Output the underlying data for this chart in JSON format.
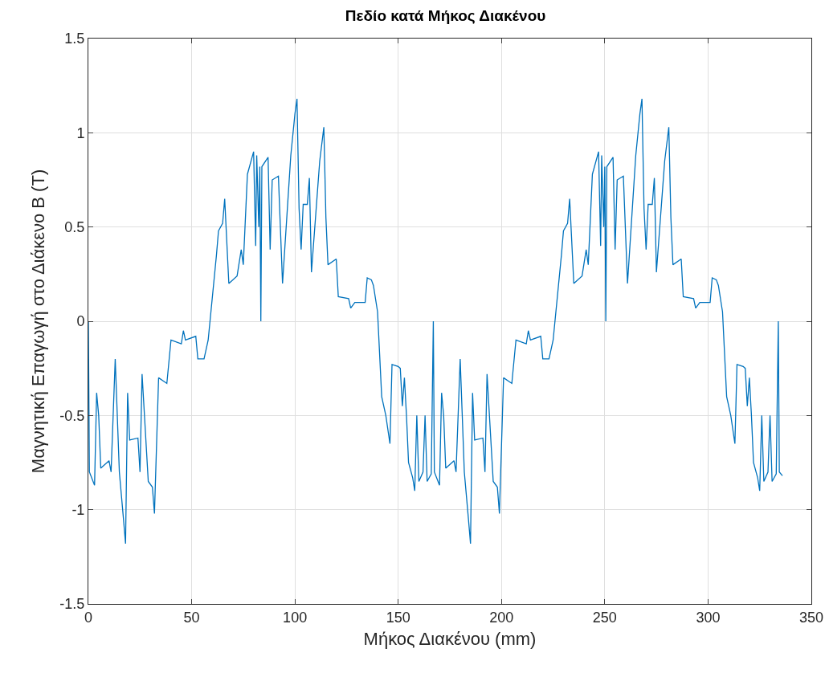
{
  "chart_data": {
    "type": "line",
    "title": "Πεδίο κατά Μήκος Διακένου",
    "xlabel": "Μήκος Διακένου (mm)",
    "ylabel": "Μαγνητική Επαγωγή στο Διάκενο B (T)",
    "x": [
      0,
      0.5,
      3,
      4,
      5,
      6,
      10,
      11,
      13,
      15,
      17,
      18,
      19,
      20,
      24,
      25,
      26,
      29,
      31,
      32,
      34,
      38,
      40,
      45,
      46,
      47,
      52,
      53,
      56,
      58,
      62,
      63,
      65,
      66,
      68,
      72,
      74,
      75,
      77,
      80,
      81,
      81.5,
      82.5,
      83,
      83.5,
      84,
      87,
      88,
      89,
      92,
      94,
      98,
      100,
      101,
      102,
      103,
      104,
      106,
      107,
      108,
      112,
      114,
      115,
      116,
      120,
      121,
      126,
      127,
      129,
      134,
      135,
      137,
      138,
      140,
      142,
      144,
      146,
      147,
      150,
      151,
      152,
      153,
      154,
      155,
      157,
      158,
      159,
      160,
      162,
      163,
      164,
      166,
      167,
      167.5,
      170,
      171,
      172,
      173,
      177,
      178,
      180,
      182,
      184,
      185,
      186,
      187,
      191,
      192,
      193,
      196,
      198,
      199,
      201,
      205,
      207,
      212,
      213,
      214,
      219,
      220,
      223,
      225,
      229,
      230,
      232,
      233,
      235,
      239,
      241,
      242,
      244,
      247,
      248,
      248.5,
      249.5,
      250,
      250.5,
      251,
      254,
      255,
      256,
      259,
      261,
      265,
      267,
      268,
      269,
      270,
      271,
      273,
      274,
      275,
      279,
      281,
      282,
      283,
      287,
      288,
      293,
      294,
      296,
      301,
      302,
      304,
      305,
      307,
      309,
      311,
      313,
      314,
      317,
      318,
      319,
      320,
      321,
      322,
      324,
      325,
      326,
      327,
      329,
      330,
      331,
      333,
      334,
      334.5,
      336
    ],
    "series": [
      {
        "color": "#0072bd",
        "values": [
          0,
          -0.8,
          -0.87,
          -0.38,
          -0.5,
          -0.78,
          -0.74,
          -0.8,
          -0.2,
          -0.8,
          -1.05,
          -1.18,
          -0.38,
          -0.63,
          -0.62,
          -0.8,
          -0.28,
          -0.85,
          -0.88,
          -1.02,
          -0.3,
          -0.33,
          -0.1,
          -0.12,
          -0.05,
          -0.1,
          -0.08,
          -0.2,
          -0.2,
          -0.1,
          0.35,
          0.48,
          0.52,
          0.65,
          0.2,
          0.24,
          0.38,
          0.3,
          0.78,
          0.9,
          0.4,
          0.88,
          0.5,
          0.82,
          0,
          0.82,
          0.87,
          0.38,
          0.75,
          0.77,
          0.2,
          0.88,
          1.1,
          1.18,
          0.6,
          0.38,
          0.62,
          0.62,
          0.76,
          0.26,
          0.85,
          1.03,
          0.55,
          0.3,
          0.33,
          0.13,
          0.12,
          0.07,
          0.1,
          0.1,
          0.23,
          0.22,
          0.19,
          0.05,
          -0.4,
          -0.5,
          -0.65,
          -0.23,
          -0.24,
          -0.25,
          -0.45,
          -0.3,
          -0.5,
          -0.75,
          -0.83,
          -0.9,
          -0.5,
          -0.85,
          -0.8,
          -0.5,
          -0.85,
          -0.81,
          0,
          -0.8,
          -0.87,
          -0.38,
          -0.5,
          -0.78,
          -0.74,
          -0.8,
          -0.2,
          -0.8,
          -1.05,
          -1.18,
          -0.38,
          -0.63,
          -0.62,
          -0.8,
          -0.28,
          -0.85,
          -0.88,
          -1.02,
          -0.3,
          -0.33,
          -0.1,
          -0.12,
          -0.05,
          -0.1,
          -0.08,
          -0.2,
          -0.2,
          -0.1,
          0.35,
          0.48,
          0.52,
          0.65,
          0.2,
          0.24,
          0.38,
          0.3,
          0.78,
          0.9,
          0.4,
          0.88,
          0.5,
          0.82,
          0,
          0.82,
          0.87,
          0.38,
          0.75,
          0.77,
          0.2,
          0.88,
          1.1,
          1.18,
          0.6,
          0.38,
          0.62,
          0.62,
          0.76,
          0.26,
          0.85,
          1.03,
          0.55,
          0.3,
          0.33,
          0.13,
          0.12,
          0.07,
          0.1,
          0.1,
          0.23,
          0.22,
          0.19,
          0.05,
          -0.4,
          -0.5,
          -0.65,
          -0.23,
          -0.24,
          -0.25,
          -0.45,
          -0.3,
          -0.5,
          -0.75,
          -0.83,
          -0.9,
          -0.5,
          -0.85,
          -0.8,
          -0.5,
          -0.85,
          -0.81,
          0,
          -0.8,
          -0.82
        ]
      }
    ],
    "xlim": [
      0,
      350
    ],
    "xticks": [
      0,
      50,
      100,
      150,
      200,
      250,
      300,
      350
    ],
    "ylim": [
      -1.5,
      1.5
    ],
    "yticks": [
      -1.5,
      -1,
      -0.5,
      0,
      0.5,
      1,
      1.5
    ],
    "grid": true,
    "marker": "none",
    "line_style": "solid"
  }
}
